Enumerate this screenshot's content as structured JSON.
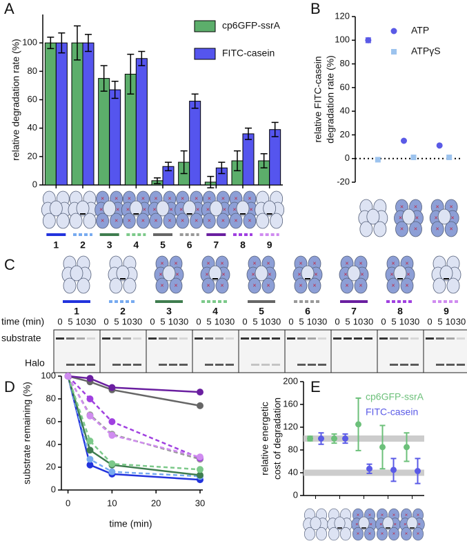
{
  "panel_letters": [
    "A",
    "B",
    "C",
    "D",
    "E"
  ],
  "chart_data": [
    {
      "type": "bar",
      "ylabel": "relative degradation rate (%)",
      "categories": [
        "1",
        "2",
        "3",
        "4",
        "5",
        "6",
        "7",
        "8",
        "9"
      ],
      "series": [
        {
          "name": "cp6GFP-ssrA",
          "color": "#5cae6b",
          "values": [
            100,
            100,
            75,
            78,
            3,
            16,
            2,
            17,
            17
          ],
          "errors": [
            4,
            12,
            9,
            14,
            2,
            8,
            4,
            7,
            5
          ]
        },
        {
          "name": "FITC-casein",
          "color": "#5555ee",
          "values": [
            100,
            100,
            67,
            89,
            13,
            59,
            12,
            36,
            39
          ],
          "errors": [
            7,
            6,
            6,
            5,
            3,
            5,
            4,
            4,
            5
          ]
        }
      ],
      "ylim": [
        0,
        120
      ],
      "yticks": [
        0,
        20,
        40,
        60,
        80,
        100
      ]
    },
    {
      "type": "scatter",
      "ylabel": [
        "relative FITC-casein",
        "degradation rate (%)"
      ],
      "categories": [
        null,
        null,
        null
      ],
      "series": [
        {
          "name": "ATP",
          "color": "#5a5ae6",
          "marker": "circle",
          "values": [
            100,
            15,
            11
          ],
          "errors": [
            2,
            0,
            0
          ]
        },
        {
          "name": "ATPγS",
          "color": "#9cc3ee",
          "marker": "square",
          "values": [
            -1,
            1,
            1
          ],
          "errors": [
            0,
            0,
            0
          ]
        }
      ],
      "ylim": [
        -20,
        120
      ],
      "yticks": [
        -20,
        0,
        20,
        40,
        60,
        80,
        100,
        120
      ]
    },
    {
      "type": "line",
      "xlabel": "time (min)",
      "ylabel": "substrate remaining  (%)",
      "x": [
        0,
        5,
        10,
        30
      ],
      "series": [
        {
          "color": "#2233dd",
          "line_style": "solid",
          "values": [
            100,
            22,
            14,
            9
          ]
        },
        {
          "color": "#77aaf0",
          "line_style": "dashed",
          "values": [
            100,
            27,
            16,
            12
          ]
        },
        {
          "color": "#3f7d4f",
          "line_style": "solid",
          "values": [
            100,
            35,
            22,
            13
          ]
        },
        {
          "color": "#7cc98a",
          "line_style": "dashed",
          "values": [
            100,
            43,
            23,
            18
          ]
        },
        {
          "color": "#666666",
          "line_style": "solid",
          "values": [
            100,
            95,
            88,
            74
          ]
        },
        {
          "color": "#999999",
          "line_style": "dashed",
          "values": [
            100,
            66,
            49,
            27
          ]
        },
        {
          "color": "#6a1fa0",
          "line_style": "solid",
          "values": [
            100,
            98,
            90,
            86
          ]
        },
        {
          "color": "#a040e0",
          "line_style": "dashed",
          "values": [
            100,
            80,
            60,
            28
          ]
        },
        {
          "color": "#d08cf0",
          "line_style": "dashed",
          "values": [
            100,
            65,
            48,
            29
          ]
        }
      ],
      "xlim": [
        -1.5,
        30
      ],
      "xticks": [
        0,
        10,
        20,
        30
      ],
      "ylim": [
        0,
        100
      ],
      "yticks": [
        0,
        20,
        40,
        60,
        80,
        100
      ]
    },
    {
      "type": "errorpoints",
      "ylabel": [
        "relative energetic",
        "cost of degradation"
      ],
      "categories": [
        null,
        null,
        null,
        null,
        null
      ],
      "series": [
        {
          "name": "cp6GFP-ssrA",
          "color": "#6cc07a",
          "values": [
            100,
            100,
            125,
            85,
            85
          ],
          "errors": [
            4,
            8,
            46,
            38,
            25
          ]
        },
        {
          "name": "FITC-casein",
          "color": "#5a5ae6",
          "values": [
            100,
            100,
            47,
            45,
            43
          ],
          "errors": [
            10,
            8,
            8,
            20,
            22
          ]
        }
      ],
      "reference_lines": [
        100,
        40
      ],
      "ylim": [
        0,
        200
      ],
      "yticks": [
        0,
        40,
        80,
        120,
        160,
        200
      ]
    }
  ],
  "gel": {
    "lanes": [
      "1",
      "2",
      "3",
      "4",
      "5",
      "6",
      "7",
      "8",
      "9"
    ],
    "time_label": "time (min)",
    "times": [
      "0",
      "5",
      "10",
      "30"
    ],
    "row_labels": [
      "substrate",
      "Halo"
    ]
  }
}
